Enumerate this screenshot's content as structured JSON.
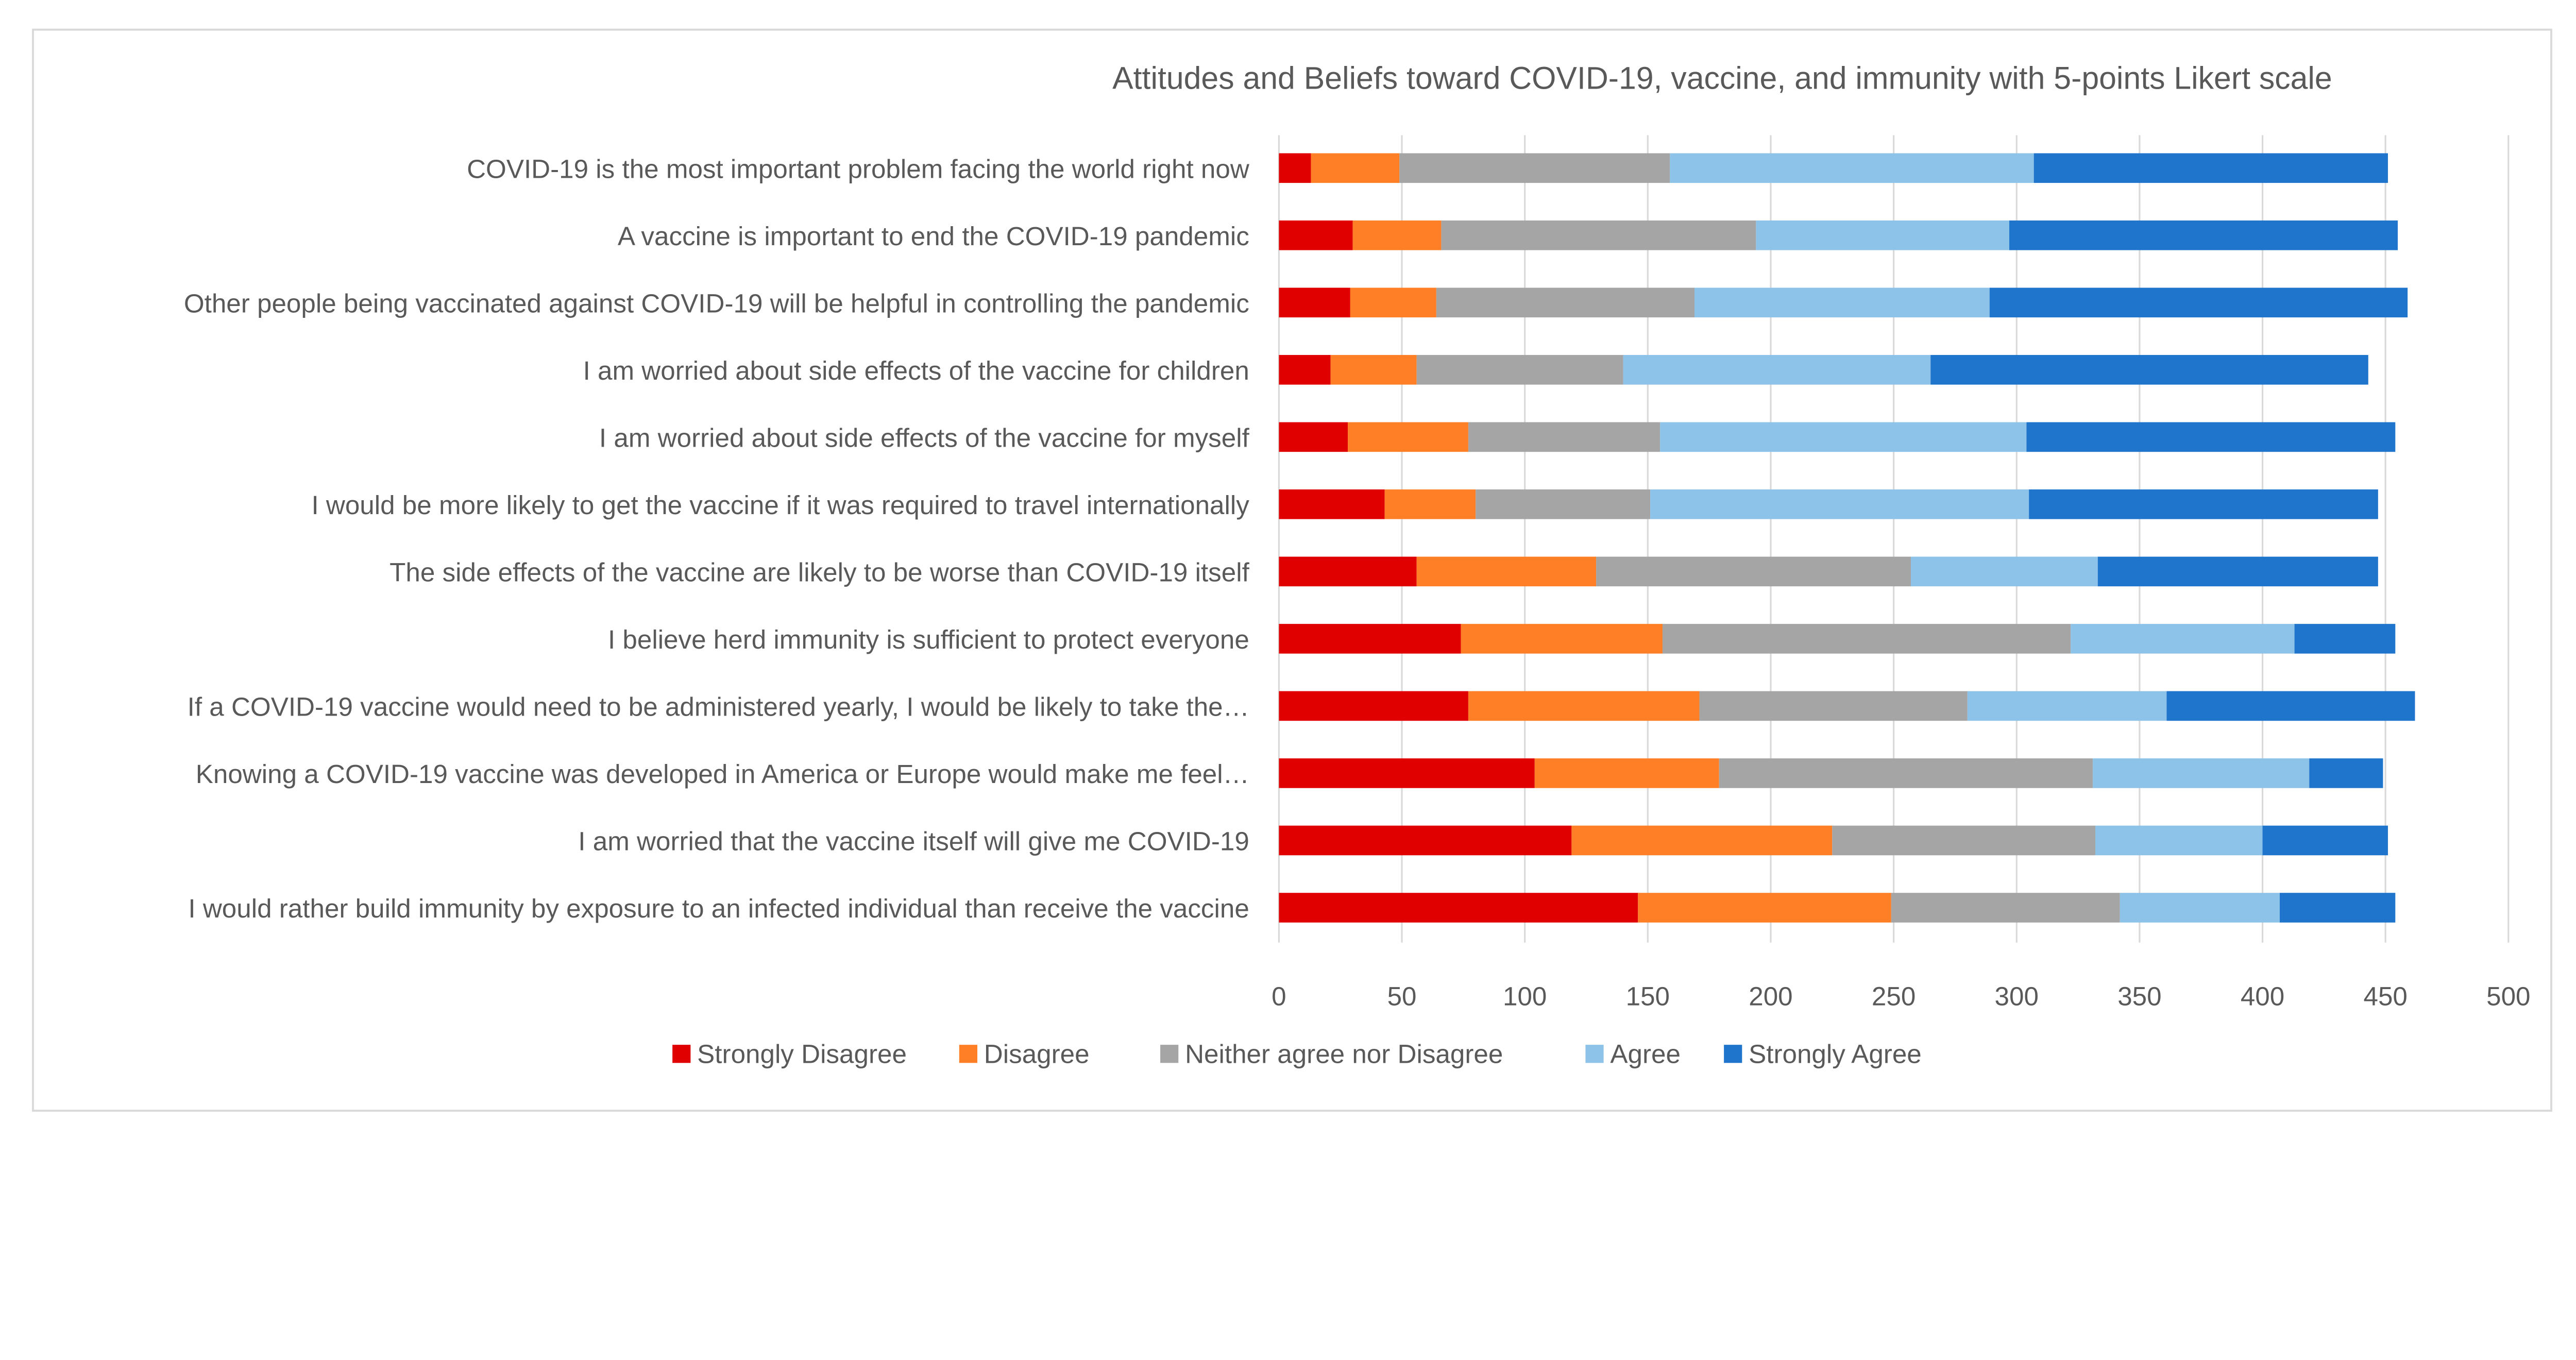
{
  "chart_data": {
    "type": "bar",
    "orientation": "horizontal",
    "stacked": true,
    "title": "Attitudes and Beliefs toward COVID-19, vaccine, and immunity with 5-points Likert scale",
    "xlabel": "",
    "ylabel": "",
    "xlim": [
      0,
      500
    ],
    "xticks": [
      "0",
      "50",
      "100",
      "150",
      "200",
      "250",
      "300",
      "350",
      "400",
      "450",
      "500"
    ],
    "grid": "vertical",
    "legend_position": "bottom",
    "categories": [
      "COVID-19 is the most important problem facing the world right now",
      "A vaccine is important to end the COVID-19 pandemic",
      "Other people being vaccinated against COVID-19 will be helpful in controlling the pandemic",
      "I am worried about side effects of the vaccine for children",
      "I am worried about side effects of the vaccine for myself",
      "I would be more likely to get the vaccine if it was required to travel internationally",
      "The side effects of the vaccine are likely to be worse than COVID-19 itself",
      "I believe herd immunity is sufficient to protect everyone",
      "If a COVID-19 vaccine would need to be administered yearly, I would be likely to take the…",
      "Knowing a COVID-19 vaccine was developed in America or Europe would make me feel…",
      "I am worried that the vaccine itself will give me COVID-19",
      "I would rather build immunity by exposure to an infected individual than receive the vaccine"
    ],
    "series": [
      {
        "name": "Strongly Disagree",
        "color": "#E00000",
        "values": [
          13,
          30,
          29,
          21,
          28,
          43,
          56,
          74,
          77,
          104,
          119,
          146
        ]
      },
      {
        "name": "Disagree",
        "color": "#FF7F27",
        "values": [
          36,
          36,
          35,
          35,
          49,
          37,
          73,
          82,
          94,
          75,
          106,
          103
        ]
      },
      {
        "name": "Neither agree nor Disagree",
        "color": "#A5A5A5",
        "values": [
          110,
          128,
          105,
          84,
          78,
          71,
          128,
          166,
          109,
          152,
          107,
          93
        ]
      },
      {
        "name": "Agree",
        "color": "#8DC3E9",
        "values": [
          148,
          103,
          120,
          125,
          149,
          154,
          76,
          91,
          81,
          88,
          68,
          65
        ]
      },
      {
        "name": "Strongly Agree",
        "color": "#1F74CB",
        "values": [
          144,
          158,
          170,
          178,
          150,
          142,
          114,
          41,
          101,
          30,
          51,
          47
        ]
      }
    ]
  }
}
